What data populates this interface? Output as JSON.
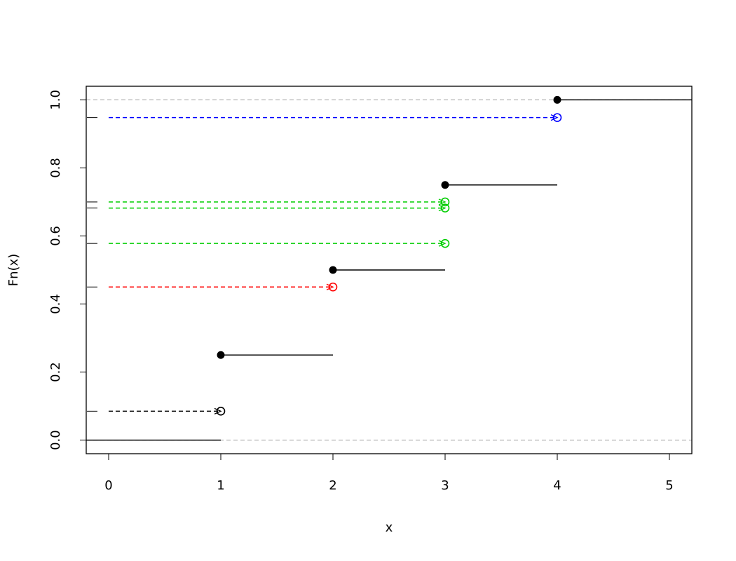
{
  "chart_data": {
    "type": "step",
    "xlabel": "x",
    "ylabel": "Fn(x)",
    "xlim": [
      -0.2,
      5.2
    ],
    "ylim": [
      -0.04,
      1.04
    ],
    "xticks": [
      0,
      1,
      2,
      3,
      4,
      5
    ],
    "yticks": [
      {
        "value": 0,
        "label": "0.0"
      },
      0.2,
      0.4,
      0.6,
      0.8,
      {
        "value": 1,
        "label": "1.0"
      }
    ],
    "step": {
      "x": [
        1,
        2,
        3,
        4
      ],
      "values": [
        0.25,
        0.5,
        0.75,
        1
      ],
      "start": 0,
      "color": "#000000"
    },
    "hlines": {
      "values": [
        0,
        1
      ],
      "color": "#b3b3b3"
    },
    "lookup_from": 0,
    "lookups": [
      {
        "x": 1,
        "y": 0.085,
        "color": "#000000"
      },
      {
        "x": 2,
        "y": 0.45,
        "color": "#ff0000"
      },
      {
        "x": 3,
        "y": 0.578,
        "color": "#00cd00"
      },
      {
        "x": 3,
        "y": 0.682,
        "color": "#00cd00"
      },
      {
        "x": 3,
        "y": 0.7,
        "color": "#00cd00"
      },
      {
        "x": 4,
        "y": 0.948,
        "color": "#0000ff"
      }
    ]
  }
}
